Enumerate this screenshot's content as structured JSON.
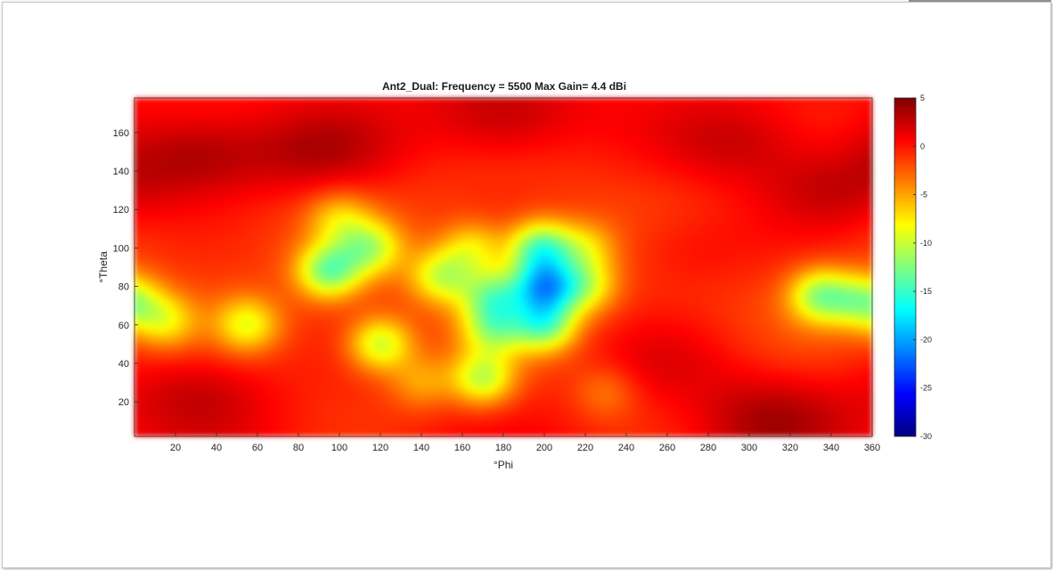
{
  "chart_data": {
    "type": "heatmap",
    "title": "Ant2_Dual: Frequency = 5500  Max Gain= 4.4 dBi",
    "xlabel": "°Phi",
    "ylabel": "°Theta",
    "xlim": [
      0,
      360
    ],
    "ylim": [
      2,
      178
    ],
    "xticks": [
      20,
      40,
      60,
      80,
      100,
      120,
      140,
      160,
      180,
      200,
      220,
      240,
      260,
      280,
      300,
      320,
      340,
      360
    ],
    "yticks": [
      20,
      40,
      60,
      80,
      100,
      120,
      140,
      160
    ],
    "colorbar": {
      "range": [
        -30,
        5
      ],
      "ticks": [
        5,
        0,
        -5,
        -10,
        -15,
        -20,
        -25,
        -30
      ],
      "colormap": "jet"
    },
    "max_gain_dBi": 4.4,
    "base_level_dBi": 0,
    "features": [
      {
        "phi": 30,
        "theta": 148,
        "gain": 4.3
      },
      {
        "phi": 90,
        "theta": 150,
        "gain": 3.5
      },
      {
        "phi": 180,
        "theta": 168,
        "gain": 3.5
      },
      {
        "phi": 295,
        "theta": 155,
        "gain": 3.0
      },
      {
        "phi": 340,
        "theta": 130,
        "gain": 3.2
      },
      {
        "phi": 30,
        "theta": 25,
        "gain": 3.0
      },
      {
        "phi": 310,
        "theta": 12,
        "gain": 3.5
      },
      {
        "phi": 260,
        "theta": 40,
        "gain": 2.0
      },
      {
        "phi": 270,
        "theta": 100,
        "gain": 2.0
      },
      {
        "phi": 95,
        "theta": 88,
        "gain": -11.0
      },
      {
        "phi": 115,
        "theta": 100,
        "gain": -8.0
      },
      {
        "phi": 120,
        "theta": 50,
        "gain": -9.0
      },
      {
        "phi": 55,
        "theta": 60,
        "gain": -7.0
      },
      {
        "phi": 15,
        "theta": 62,
        "gain": -6.0
      },
      {
        "phi": 175,
        "theta": 75,
        "gain": -9.0
      },
      {
        "phi": 175,
        "theta": 58,
        "gain": -8.0
      },
      {
        "phi": 170,
        "theta": 32,
        "gain": -9.0
      },
      {
        "phi": 165,
        "theta": 100,
        "gain": -6.0
      },
      {
        "phi": 150,
        "theta": 85,
        "gain": -8.0
      },
      {
        "phi": 200,
        "theta": 80,
        "gain": -15.0
      },
      {
        "phi": 198,
        "theta": 100,
        "gain": -12.0
      },
      {
        "phi": 200,
        "theta": 60,
        "gain": -11.0
      },
      {
        "phi": 220,
        "theta": 80,
        "gain": -7.0
      },
      {
        "phi": 220,
        "theta": 100,
        "gain": -5.0
      },
      {
        "phi": 335,
        "theta": 75,
        "gain": -10.0
      },
      {
        "phi": 357,
        "theta": 72,
        "gain": -9.0
      },
      {
        "phi": 230,
        "theta": 25,
        "gain": -3.0
      },
      {
        "phi": 140,
        "theta": 30,
        "gain": -4.0
      },
      {
        "phi": 100,
        "theta": 115,
        "gain": -5.0
      }
    ]
  }
}
